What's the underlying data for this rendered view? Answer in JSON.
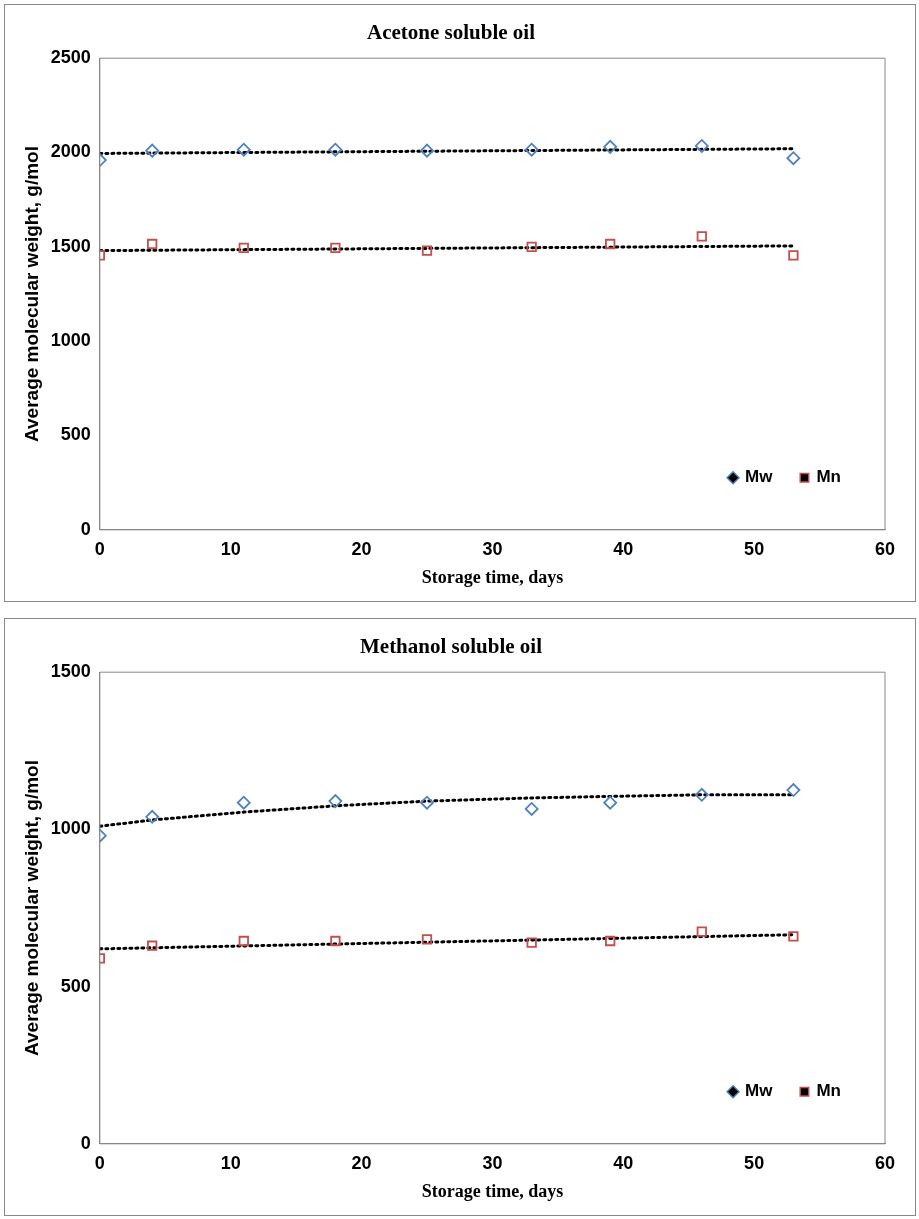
{
  "chart_data": [
    {
      "type": "scatter",
      "title": "Acetone soluble oil",
      "xlabel": "Storage time, days",
      "ylabel": "Average molecular weight, g/mol",
      "x": [
        0,
        4,
        11,
        18,
        25,
        33,
        39,
        46,
        53
      ],
      "series": [
        {
          "name": "Mw",
          "color": "#4f81bd",
          "marker": "diamond",
          "values": [
            1960,
            2010,
            2015,
            2015,
            2010,
            2015,
            2030,
            2035,
            1970
          ]
        },
        {
          "name": "Mn",
          "color": "#c0504d",
          "marker": "square",
          "values": [
            1455,
            1515,
            1495,
            1495,
            1480,
            1500,
            1515,
            1555,
            1455
          ]
        },
        {
          "type": "line",
          "color": "#000000",
          "line_style": "dotted",
          "marker": "none",
          "x": [
            0,
            53
          ],
          "values": [
            1995,
            2020
          ]
        },
        {
          "type": "line",
          "color": "#000000",
          "line_style": "dotted",
          "marker": "none",
          "x": [
            0,
            53
          ],
          "values": [
            1480,
            1505
          ]
        }
      ],
      "xlim": [
        0,
        60
      ],
      "xticks": [
        0,
        10,
        20,
        30,
        40,
        50,
        60
      ],
      "ylim": [
        0,
        2500
      ],
      "yticks": [
        0,
        500,
        1000,
        1500,
        2000,
        2500
      ],
      "grid": false,
      "legend": "bottom right"
    },
    {
      "type": "scatter",
      "title": "Methanol soluble oil",
      "xlabel": "Storage time, days",
      "ylabel": "Average molecular weight, g/mol",
      "x": [
        0,
        4,
        11,
        18,
        25,
        33,
        39,
        46,
        53
      ],
      "series": [
        {
          "name": "Mw",
          "color": "#4f81bd",
          "marker": "diamond",
          "values": [
            980,
            1040,
            1085,
            1090,
            1085,
            1065,
            1085,
            1110,
            1125
          ]
        },
        {
          "name": "Mn",
          "color": "#c0504d",
          "marker": "square",
          "values": [
            590,
            630,
            645,
            645,
            650,
            640,
            645,
            675,
            660
          ]
        },
        {
          "type": "line",
          "color": "#000000",
          "line_style": "dotted",
          "marker": "none",
          "x": [
            0,
            4,
            11,
            18,
            25,
            33,
            39,
            46,
            53
          ],
          "values": [
            1010,
            1030,
            1055,
            1075,
            1090,
            1100,
            1105,
            1110,
            1110
          ]
        },
        {
          "type": "line",
          "color": "#000000",
          "line_style": "dotted",
          "marker": "none",
          "x": [
            0,
            53
          ],
          "values": [
            620,
            665
          ]
        }
      ],
      "xlim": [
        0,
        60
      ],
      "xticks": [
        0,
        10,
        20,
        30,
        40,
        50,
        60
      ],
      "ylim": [
        0,
        1500
      ],
      "yticks": [
        0,
        500,
        1000,
        1500
      ],
      "grid": false,
      "legend": "bottom right"
    }
  ]
}
